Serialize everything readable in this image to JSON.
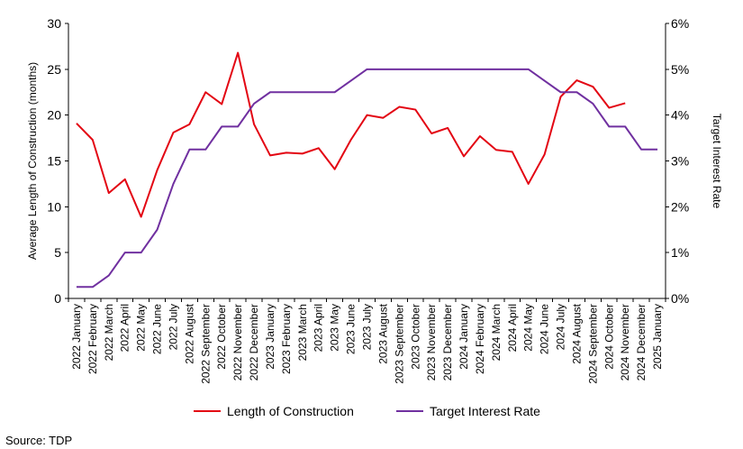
{
  "chart_data": {
    "type": "line",
    "categories": [
      "2022 January",
      "2022 February",
      "2022 March",
      "2022 April",
      "2022 May",
      "2022 June",
      "2022 July",
      "2022 August",
      "2022 September",
      "2022 October",
      "2022 November",
      "2022 December",
      "2023 January",
      "2023 February",
      "2023 March",
      "2023 April",
      "2023 May",
      "2023 June",
      "2023 July",
      "2023 August",
      "2023 September",
      "2023 October",
      "2023 November",
      "2023 December",
      "2024 January",
      "2024 February",
      "2024 March",
      "2024 April",
      "2024 May",
      "2024 June",
      "2024 July",
      "2024 August",
      "2024 September",
      "2024 October",
      "2024 November",
      "2024 December",
      "2025 January"
    ],
    "series": [
      {
        "name": "Length of Construction",
        "axis": "left",
        "color": "#e30613",
        "values": [
          19.1,
          17.3,
          11.5,
          13.0,
          8.9,
          14.0,
          18.1,
          19.0,
          22.5,
          21.2,
          26.8,
          19.0,
          15.6,
          15.9,
          15.8,
          16.4,
          14.1,
          17.3,
          20.0,
          19.7,
          20.9,
          20.6,
          18.0,
          18.6,
          15.5,
          17.7,
          16.2,
          16.0,
          12.5,
          15.7,
          22.0,
          23.8,
          23.1,
          20.8,
          21.3,
          null,
          null
        ]
      },
      {
        "name": "Target Interest Rate",
        "axis": "right",
        "color": "#7030a0",
        "values": [
          0.25,
          0.25,
          0.5,
          1.0,
          1.0,
          1.5,
          2.5,
          3.25,
          3.25,
          3.75,
          3.75,
          4.25,
          4.5,
          4.5,
          4.5,
          4.5,
          4.5,
          4.75,
          5.0,
          5.0,
          5.0,
          5.0,
          5.0,
          5.0,
          5.0,
          5.0,
          5.0,
          5.0,
          5.0,
          4.75,
          4.5,
          4.5,
          4.25,
          3.75,
          3.75,
          3.25,
          3.25
        ]
      }
    ],
    "ylabel": "Average Length of Construction (months)",
    "ylim": [
      0,
      30
    ],
    "yticks": [
      "0",
      "5",
      "10",
      "15",
      "20",
      "25",
      "30"
    ],
    "y2label": "Target Interest Rate",
    "y2lim": [
      0,
      6
    ],
    "y2ticks": [
      "0%",
      "1%",
      "2%",
      "3%",
      "4%",
      "5%",
      "6%"
    ],
    "grid": false,
    "legend_position": "bottom"
  },
  "source": "Source: TDP"
}
